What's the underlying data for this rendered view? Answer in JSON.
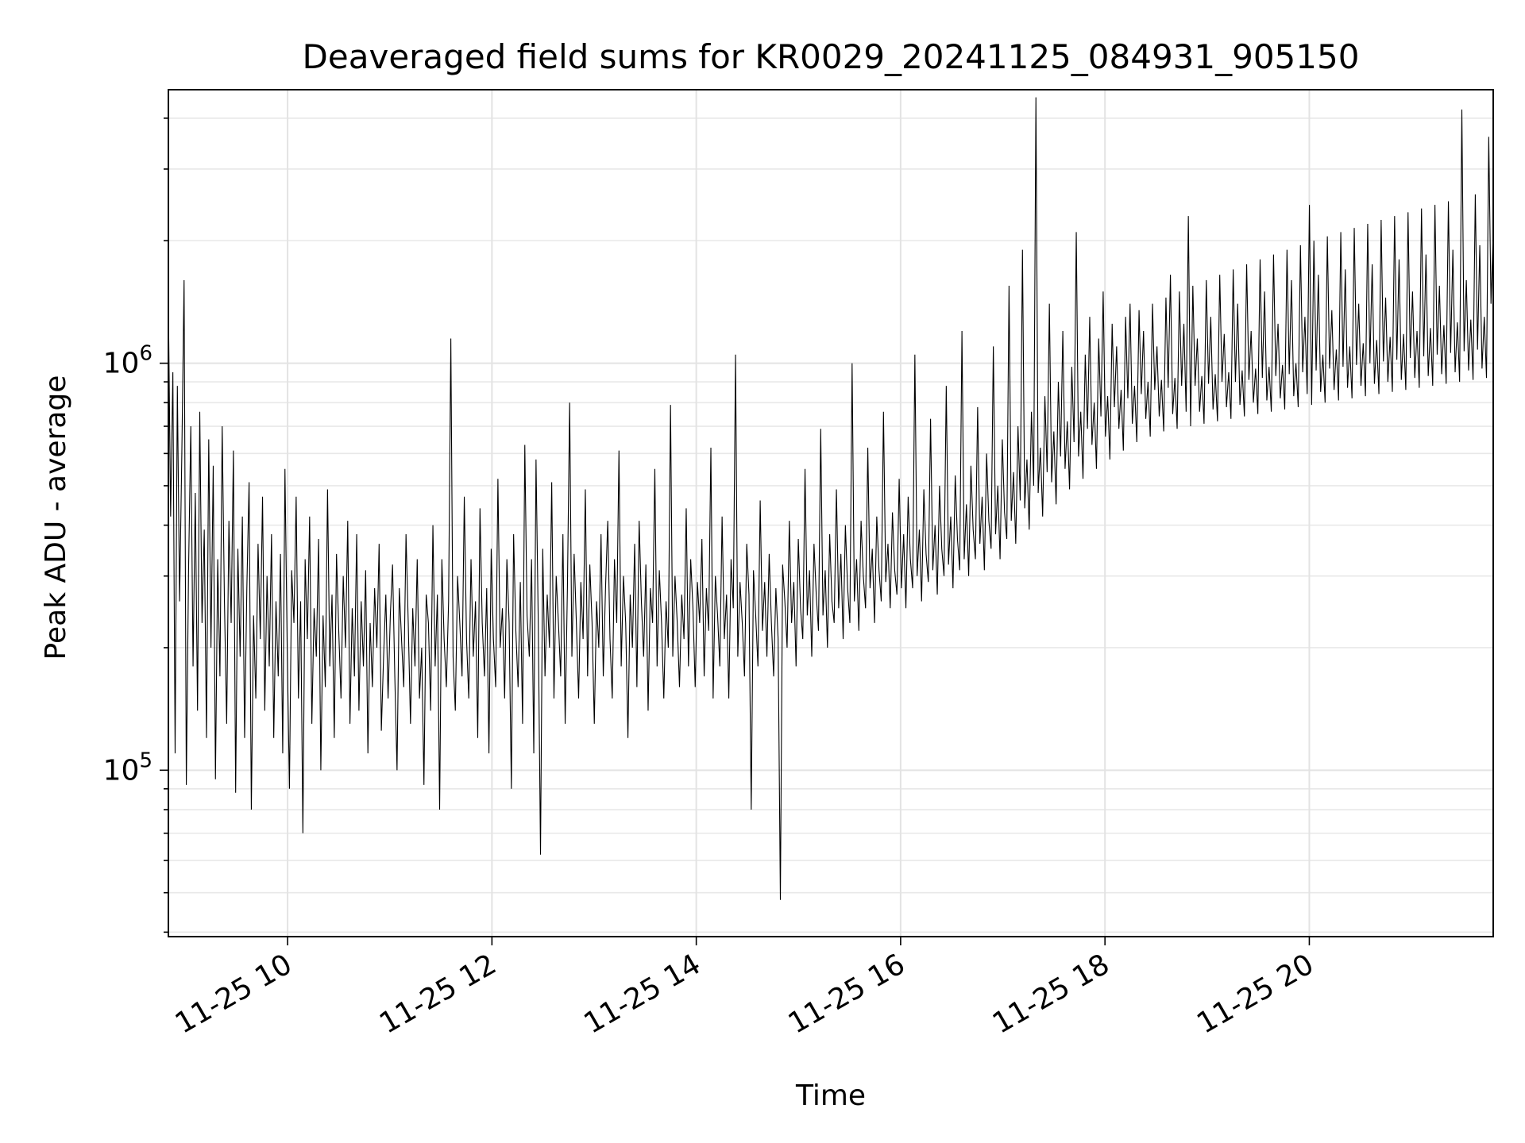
{
  "chart_data": {
    "type": "line",
    "title": "Deaveraged field sums for KR0029_20241125_084931_905150",
    "xlabel": "Time",
    "ylabel": "Peak ADU - average",
    "x_scale": "time",
    "y_scale": "log",
    "xlim": [
      "2024-11-25T08:50",
      "2024-11-25T21:48"
    ],
    "ylim": [
      39000,
      4700000
    ],
    "x_ticks": [
      {
        "value": "2024-11-25T10:00",
        "label": "11-25 10"
      },
      {
        "value": "2024-11-25T12:00",
        "label": "11-25 12"
      },
      {
        "value": "2024-11-25T14:00",
        "label": "11-25 14"
      },
      {
        "value": "2024-11-25T16:00",
        "label": "11-25 16"
      },
      {
        "value": "2024-11-25T18:00",
        "label": "11-25 18"
      },
      {
        "value": "2024-11-25T20:00",
        "label": "11-25 20"
      }
    ],
    "y_ticks": [
      {
        "value": 100000,
        "mantissa": "10",
        "exponent": "5"
      },
      {
        "value": 1000000,
        "mantissa": "10",
        "exponent": "6"
      }
    ],
    "grid": true,
    "legend": "none",
    "series": [
      {
        "color": "#000000",
        "x_start": "2024-11-25T08:50",
        "x_end": "2024-11-25T21:48",
        "values": [
          1400000,
          420000,
          950000,
          110000,
          880000,
          260000,
          600000,
          1600000,
          92000,
          310000,
          700000,
          180000,
          480000,
          140000,
          760000,
          230000,
          390000,
          120000,
          650000,
          200000,
          560000,
          95000,
          330000,
          170000,
          700000,
          260000,
          130000,
          410000,
          230000,
          610000,
          88000,
          350000,
          190000,
          420000,
          120000,
          280000,
          510000,
          80000,
          240000,
          150000,
          360000,
          210000,
          470000,
          140000,
          300000,
          180000,
          380000,
          120000,
          260000,
          170000,
          340000,
          110000,
          550000,
          200000,
          90000,
          310000,
          230000,
          470000,
          150000,
          260000,
          70000,
          330000,
          210000,
          420000,
          130000,
          250000,
          190000,
          370000,
          100000,
          240000,
          160000,
          490000,
          180000,
          270000,
          120000,
          340000,
          220000,
          150000,
          300000,
          200000,
          410000,
          130000,
          250000,
          170000,
          380000,
          140000,
          260000,
          180000,
          310000,
          110000,
          230000,
          160000,
          280000,
          200000,
          360000,
          125000,
          190000,
          270000,
          150000,
          240000,
          320000,
          170000,
          100000,
          280000,
          210000,
          160000,
          380000,
          230000,
          130000,
          250000,
          180000,
          330000,
          150000,
          200000,
          92000,
          270000,
          230000,
          140000,
          400000,
          180000,
          270000,
          80000,
          330000,
          210000,
          160000,
          260000,
          1150000,
          190000,
          140000,
          300000,
          230000,
          170000,
          470000,
          210000,
          150000,
          330000,
          190000,
          260000,
          120000,
          440000,
          230000,
          170000,
          280000,
          110000,
          350000,
          210000,
          160000,
          520000,
          200000,
          250000,
          150000,
          330000,
          230000,
          90000,
          380000,
          220000,
          160000,
          290000,
          130000,
          630000,
          240000,
          190000,
          330000,
          110000,
          580000,
          230000,
          62000,
          350000,
          170000,
          270000,
          200000,
          510000,
          150000,
          300000,
          230000,
          170000,
          380000,
          130000,
          280000,
          800000,
          190000,
          340000,
          230000,
          150000,
          290000,
          210000,
          490000,
          170000,
          320000,
          230000,
          130000,
          260000,
          200000,
          380000,
          170000,
          280000,
          410000,
          210000,
          150000,
          330000,
          230000,
          610000,
          180000,
          300000,
          230000,
          120000,
          270000,
          200000,
          360000,
          160000,
          410000,
          260000,
          190000,
          320000,
          140000,
          280000,
          230000,
          550000,
          180000,
          310000,
          230000,
          150000,
          260000,
          200000,
          790000,
          190000,
          300000,
          230000,
          160000,
          270000,
          210000,
          440000,
          180000,
          330000,
          250000,
          160000,
          290000,
          230000,
          370000,
          170000,
          280000,
          220000,
          620000,
          150000,
          300000,
          240000,
          180000,
          420000,
          210000,
          270000,
          150000,
          330000,
          250000,
          1050000,
          190000,
          290000,
          230000,
          170000,
          360000,
          270000,
          80000,
          310000,
          240000,
          180000,
          460000,
          220000,
          290000,
          190000,
          340000,
          230000,
          170000,
          280000,
          210000,
          48000,
          320000,
          260000,
          200000,
          410000,
          230000,
          290000,
          180000,
          370000,
          250000,
          210000,
          550000,
          240000,
          310000,
          190000,
          360000,
          270000,
          220000,
          690000,
          240000,
          310000,
          200000,
          380000,
          260000,
          230000,
          490000,
          250000,
          340000,
          210000,
          400000,
          280000,
          230000,
          1000000,
          260000,
          330000,
          220000,
          410000,
          300000,
          250000,
          620000,
          280000,
          350000,
          230000,
          420000,
          310000,
          260000,
          760000,
          290000,
          360000,
          250000,
          430000,
          310000,
          270000,
          520000,
          280000,
          380000,
          250000,
          470000,
          330000,
          280000,
          1050000,
          300000,
          390000,
          260000,
          490000,
          340000,
          290000,
          730000,
          310000,
          400000,
          270000,
          500000,
          350000,
          300000,
          880000,
          320000,
          420000,
          280000,
          530000,
          370000,
          310000,
          1200000,
          330000,
          450000,
          300000,
          560000,
          390000,
          330000,
          780000,
          360000,
          470000,
          310000,
          600000,
          410000,
          350000,
          1100000,
          380000,
          500000,
          330000,
          650000,
          430000,
          370000,
          1550000,
          410000,
          540000,
          360000,
          700000,
          460000,
          1900000,
          440000,
          580000,
          390000,
          760000,
          500000,
          4500000,
          480000,
          620000,
          420000,
          830000,
          540000,
          1400000,
          510000,
          680000,
          450000,
          900000,
          590000,
          1200000,
          550000,
          720000,
          490000,
          980000,
          640000,
          2100000,
          590000,
          760000,
          520000,
          1050000,
          690000,
          1300000,
          630000,
          800000,
          550000,
          1150000,
          740000,
          1500000,
          660000,
          830000,
          580000,
          1250000,
          780000,
          1100000,
          690000,
          860000,
          610000,
          1300000,
          820000,
          1400000,
          710000,
          880000,
          640000,
          1350000,
          840000,
          1200000,
          730000,
          900000,
          660000,
          1400000,
          860000,
          1100000,
          740000,
          910000,
          680000,
          1450000,
          870000,
          1650000,
          750000,
          920000,
          690000,
          1500000,
          880000,
          1250000,
          760000,
          2300000,
          700000,
          1550000,
          880000,
          1150000,
          760000,
          930000,
          710000,
          1600000,
          890000,
          1300000,
          770000,
          940000,
          720000,
          1650000,
          900000,
          1180000,
          780000,
          950000,
          730000,
          1700000,
          900000,
          1400000,
          790000,
          960000,
          740000,
          1750000,
          910000,
          1200000,
          800000,
          970000,
          750000,
          1800000,
          920000,
          1500000,
          810000,
          980000,
          760000,
          1850000,
          930000,
          1250000,
          820000,
          990000,
          770000,
          1900000,
          940000,
          1600000,
          830000,
          1000000,
          780000,
          1950000,
          950000,
          1300000,
          840000,
          2450000,
          790000,
          2000000,
          960000,
          1650000,
          850000,
          1050000,
          800000,
          2050000,
          970000,
          1350000,
          860000,
          1080000,
          810000,
          2100000,
          980000,
          1700000,
          870000,
          1100000,
          820000,
          2150000,
          990000,
          1400000,
          880000,
          1120000,
          830000,
          2200000,
          1000000,
          1750000,
          890000,
          1140000,
          840000,
          2250000,
          1010000,
          1450000,
          900000,
          1160000,
          850000,
          2300000,
          1020000,
          1800000,
          910000,
          1180000,
          860000,
          2350000,
          1030000,
          1500000,
          920000,
          1200000,
          870000,
          2400000,
          1040000,
          1850000,
          930000,
          1220000,
          880000,
          2450000,
          1050000,
          1550000,
          940000,
          1240000,
          890000,
          2500000,
          1060000,
          1900000,
          950000,
          1260000,
          900000,
          4200000,
          1070000,
          1600000,
          960000,
          1280000,
          910000,
          2600000,
          1080000,
          1950000,
          970000,
          1300000,
          920000,
          3600000,
          1400000,
          2100000
        ]
      }
    ]
  }
}
